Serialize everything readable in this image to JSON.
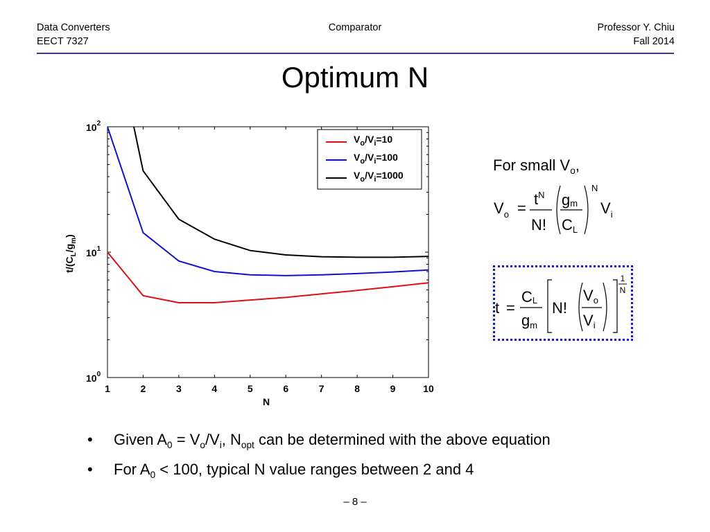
{
  "header": {
    "left_line1": "Data Converters",
    "left_line2": "EECT 7327",
    "center": "Comparator",
    "right_line1": "Professor Y. Chiu",
    "right_line2": "Fall 2014"
  },
  "title": "Optimum N",
  "chart_data": {
    "type": "line",
    "x": [
      1,
      2,
      3,
      4,
      5,
      6,
      7,
      8,
      9,
      10
    ],
    "xlabel": "N",
    "ylabel": "t/(C_L/g_m)",
    "y_scale": "log",
    "xlim": [
      1,
      10
    ],
    "ylim": [
      1,
      100
    ],
    "x_ticks": [
      "1",
      "2",
      "3",
      "4",
      "5",
      "6",
      "7",
      "8",
      "9",
      "10"
    ],
    "y_ticks": [
      {
        "base": "10",
        "exp": "0"
      },
      {
        "base": "10",
        "exp": "1"
      },
      {
        "base": "10",
        "exp": "2"
      }
    ],
    "legend_position": "top-right",
    "series": [
      {
        "name": "Vo/Vi=10",
        "label_parts": [
          "V",
          "o",
          "/V",
          "i",
          "=10"
        ],
        "color": "#e01010",
        "values": [
          10,
          4.5,
          3.95,
          3.95,
          4.15,
          4.35,
          4.65,
          4.95,
          5.3,
          5.7
        ]
      },
      {
        "name": "Vo/Vi=100",
        "label_parts": [
          "V",
          "o",
          "/V",
          "i",
          "=100"
        ],
        "color": "#1010d0",
        "values": [
          100,
          14.3,
          8.5,
          7.0,
          6.6,
          6.5,
          6.6,
          6.75,
          6.95,
          7.2
        ]
      },
      {
        "name": "Vo/Vi=1000",
        "label_parts": [
          "V",
          "o",
          "/V",
          "i",
          "=1000"
        ],
        "color": "#000000",
        "values": [
          1000,
          44.5,
          18.3,
          12.7,
          10.3,
          9.5,
          9.2,
          9.1,
          9.1,
          9.25
        ]
      }
    ]
  },
  "equations": {
    "for_small": "For small V",
    "for_small_sub": "o",
    "for_small_tail": ",",
    "eq1": {
      "lhs": "V",
      "lhs_sub": "o",
      "equals": "=",
      "num": "t",
      "num_sup": "N",
      "den": "N!",
      "inner_num": "g",
      "inner_num_sub": "m",
      "inner_den": "C",
      "inner_den_sub": "L",
      "power": "N",
      "rhs": "V",
      "rhs_sub": "i"
    },
    "eq2": {
      "lhs": "t",
      "equals": "=",
      "num": "C",
      "num_sub": "L",
      "den": "g",
      "den_sub": "m",
      "nfact": "N!",
      "inner_num": "V",
      "inner_num_sub": "o",
      "inner_den": "V",
      "inner_den_sub": "i",
      "exp_num": "1",
      "exp_den": "N"
    }
  },
  "bullets": [
    {
      "symbol": "•",
      "parts": [
        "Given A",
        "0",
        " = V",
        "o",
        "/V",
        "i",
        ", N",
        "opt",
        " can be determined with the above equation"
      ]
    },
    {
      "symbol": "•",
      "parts": [
        "For A",
        "0",
        " < 100, typical N value ranges between 2 and 4"
      ]
    }
  ],
  "page_number": "– 8 –"
}
